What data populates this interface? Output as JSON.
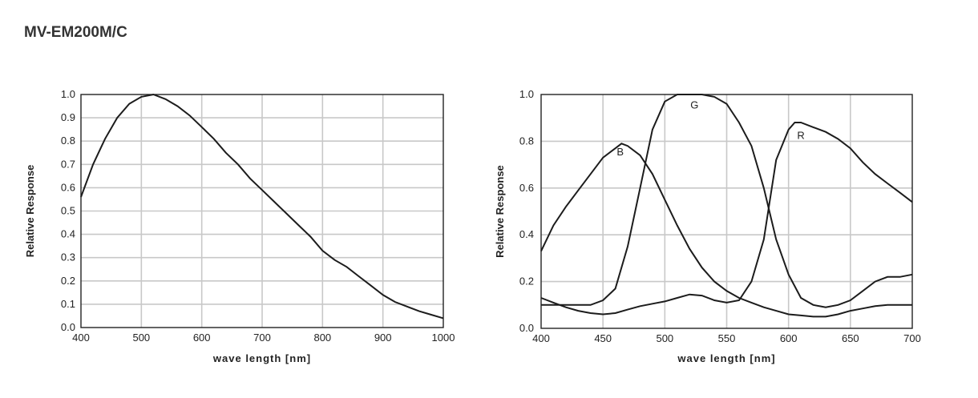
{
  "page": {
    "title": "MV-EM200M/C"
  },
  "chart_data": [
    {
      "type": "line",
      "xlabel": "wave length [nm]",
      "ylabel": "Relative Response",
      "xlim": [
        400,
        1000
      ],
      "ylim": [
        0,
        1.0
      ],
      "x_ticks": [
        "400",
        "500",
        "600",
        "700",
        "800",
        "900",
        "1000"
      ],
      "y_ticks": [
        "0.0",
        "0.1",
        "0.2",
        "0.3",
        "0.4",
        "0.5",
        "0.6",
        "0.7",
        "0.8",
        "0.9",
        "1.0"
      ],
      "grid": true,
      "series": [
        {
          "x": [
            400,
            420,
            440,
            460,
            480,
            500,
            520,
            540,
            560,
            580,
            600,
            620,
            640,
            660,
            680,
            700,
            720,
            740,
            760,
            780,
            800,
            820,
            840,
            860,
            880,
            900,
            920,
            940,
            960,
            980,
            1000
          ],
          "values": [
            0.56,
            0.7,
            0.81,
            0.9,
            0.96,
            0.99,
            1.0,
            0.98,
            0.95,
            0.91,
            0.86,
            0.81,
            0.75,
            0.7,
            0.64,
            0.59,
            0.54,
            0.49,
            0.44,
            0.39,
            0.33,
            0.29,
            0.26,
            0.22,
            0.18,
            0.14,
            0.11,
            0.09,
            0.07,
            0.055,
            0.04
          ]
        }
      ]
    },
    {
      "type": "line",
      "xlabel": "wave length [nm]",
      "ylabel": "Relative Response",
      "xlim": [
        400,
        700
      ],
      "ylim": [
        0,
        1.0
      ],
      "x_ticks": [
        "400",
        "450",
        "500",
        "550",
        "600",
        "650",
        "700"
      ],
      "y_ticks": [
        "0.0",
        "0.2",
        "0.4",
        "0.6",
        "0.8",
        "1.0"
      ],
      "grid": true,
      "series": [
        {
          "name": "B",
          "x": [
            400,
            410,
            420,
            430,
            440,
            450,
            460,
            465,
            470,
            480,
            490,
            500,
            510,
            520,
            530,
            540,
            550,
            560,
            570,
            580,
            590,
            600,
            610,
            620,
            630,
            640,
            650,
            660,
            670,
            680,
            690,
            700
          ],
          "values": [
            0.33,
            0.44,
            0.52,
            0.59,
            0.66,
            0.73,
            0.77,
            0.79,
            0.78,
            0.74,
            0.66,
            0.55,
            0.44,
            0.34,
            0.26,
            0.2,
            0.16,
            0.13,
            0.11,
            0.09,
            0.075,
            0.06,
            0.055,
            0.05,
            0.05,
            0.06,
            0.075,
            0.085,
            0.095,
            0.1,
            0.1,
            0.1
          ]
        },
        {
          "name": "G",
          "x": [
            400,
            410,
            420,
            430,
            440,
            450,
            460,
            470,
            480,
            490,
            500,
            510,
            520,
            530,
            540,
            550,
            560,
            570,
            580,
            590,
            600,
            610,
            620,
            630,
            640,
            650,
            660,
            670,
            680,
            690,
            700
          ],
          "values": [
            0.1,
            0.1,
            0.1,
            0.1,
            0.1,
            0.12,
            0.17,
            0.35,
            0.6,
            0.85,
            0.97,
            1.0,
            1.0,
            1.0,
            0.99,
            0.96,
            0.88,
            0.78,
            0.6,
            0.38,
            0.23,
            0.13,
            0.1,
            0.09,
            0.1,
            0.12,
            0.16,
            0.2,
            0.22,
            0.22,
            0.23
          ]
        },
        {
          "name": "R",
          "x": [
            400,
            410,
            420,
            430,
            440,
            450,
            460,
            470,
            480,
            490,
            500,
            510,
            520,
            530,
            540,
            550,
            560,
            570,
            580,
            590,
            600,
            605,
            610,
            620,
            630,
            640,
            650,
            660,
            670,
            680,
            690,
            700
          ],
          "values": [
            0.13,
            0.11,
            0.09,
            0.075,
            0.065,
            0.06,
            0.065,
            0.08,
            0.095,
            0.105,
            0.115,
            0.13,
            0.145,
            0.14,
            0.12,
            0.11,
            0.12,
            0.2,
            0.38,
            0.72,
            0.85,
            0.88,
            0.88,
            0.86,
            0.84,
            0.81,
            0.77,
            0.71,
            0.66,
            0.62,
            0.58,
            0.54
          ]
        }
      ],
      "annotations": [
        {
          "text": "B",
          "x": 464,
          "y": 0.74
        },
        {
          "text": "G",
          "x": 524,
          "y": 0.94
        },
        {
          "text": "R",
          "x": 610,
          "y": 0.81
        }
      ]
    }
  ]
}
